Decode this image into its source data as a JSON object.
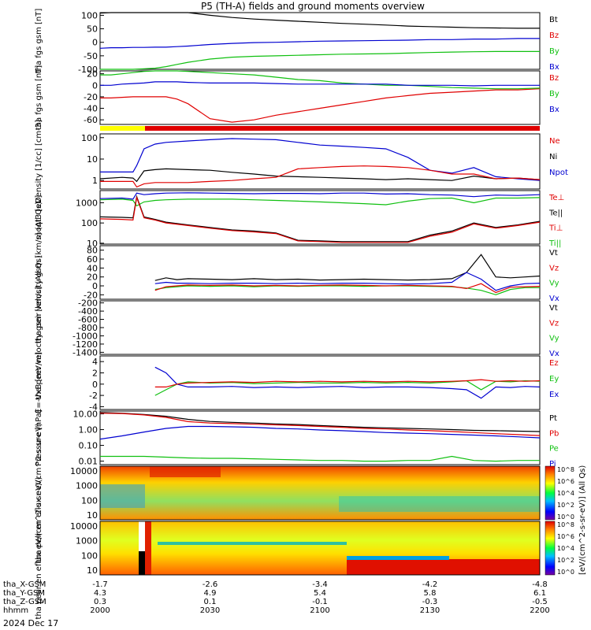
{
  "title": "P5 (TH-A) fields and ground moments overview",
  "colors": {
    "black": "#000000",
    "red": "#e00000",
    "green": "#10c010",
    "blue": "#0000d0",
    "yellow": "#ffff00"
  },
  "colorbar_label": "[eV/(cm^2-s-sr-eV)] (All Qs)",
  "colorbar_ticks": [
    "10^8",
    "10^6",
    "10^4",
    "10^2",
    "10^0"
  ],
  "ephemeris": {
    "rows": [
      {
        "label": "tha_X-GSM",
        "values": [
          "-1.7",
          "-2.6",
          "-3.4",
          "-4.2",
          "-4.8"
        ]
      },
      {
        "label": "tha_Y-GSM",
        "values": [
          "4.3",
          "4.9",
          "5.4",
          "5.8",
          "6.1"
        ]
      },
      {
        "label": "tha_Z-GSM",
        "values": [
          "0.3",
          "0.1",
          "-0.1",
          "-0.3",
          "-0.5"
        ]
      },
      {
        "label": "hhmm",
        "values": [
          "2000",
          "2030",
          "2100",
          "2130",
          "2200"
        ]
      }
    ],
    "date": "2024 Dec 17"
  },
  "chart_data": [
    {
      "type": "line",
      "ylabel": "tha fgs gsm [nT]",
      "yticks": [
        "100",
        "50",
        "0",
        "-50",
        "-100"
      ],
      "ylim": [
        -100,
        110
      ],
      "legend": [
        "Bt",
        "Bz",
        "By",
        "Bx"
      ],
      "legend_colors": [
        "#000000",
        "#e00000",
        "#10c010",
        "#0000d0"
      ],
      "x": [
        0,
        3,
        6,
        9,
        12,
        15,
        18,
        21,
        24,
        30,
        36,
        42,
        48,
        54,
        60,
        66,
        72,
        78,
        84,
        90,
        96,
        102,
        108,
        114,
        120
      ],
      "series": [
        {
          "color": "#000000",
          "values": [
            108,
            110,
            110,
            110,
            110,
            110,
            110,
            110,
            110,
            100,
            92,
            86,
            82,
            78,
            74,
            70,
            67,
            64,
            60,
            58,
            56,
            54,
            53,
            52,
            52
          ]
        },
        {
          "color": "#0000d0",
          "values": [
            -22,
            -20,
            -20,
            -19,
            -19,
            -18,
            -18,
            -16,
            -14,
            -8,
            -4,
            -1,
            0,
            2,
            4,
            5,
            6,
            7,
            8,
            10,
            10,
            12,
            12,
            14,
            14
          ]
        },
        {
          "color": "#10c010",
          "values": [
            -102,
            -102,
            -102,
            -100,
            -98,
            -96,
            -90,
            -82,
            -74,
            -62,
            -55,
            -52,
            -50,
            -48,
            -46,
            -44,
            -43,
            -42,
            -40,
            -38,
            -36,
            -35,
            -34,
            -34,
            -34
          ]
        }
      ]
    },
    {
      "type": "line",
      "ylabel": "tha fgs gsm [nT]",
      "yticks": [
        "20",
        "0",
        "-20",
        "-40",
        "-60"
      ],
      "ylim": [
        -68,
        25
      ],
      "legend": [
        "Bz",
        "By",
        "Bx"
      ],
      "legend_colors": [
        "#e00000",
        "#10c010",
        "#0000d0"
      ],
      "x": [
        0,
        3,
        6,
        9,
        12,
        15,
        18,
        21,
        24,
        30,
        36,
        42,
        48,
        54,
        60,
        66,
        72,
        78,
        84,
        90,
        96,
        102,
        108,
        114,
        120
      ],
      "series": [
        {
          "color": "#e00000",
          "values": [
            -22,
            -22,
            -21,
            -20,
            -20,
            -20,
            -20,
            -24,
            -32,
            -58,
            -64,
            -60,
            -52,
            -46,
            -40,
            -34,
            -28,
            -22,
            -18,
            -14,
            -12,
            -10,
            -8,
            -8,
            -6
          ]
        },
        {
          "color": "#10c010",
          "values": [
            18,
            18,
            20,
            22,
            24,
            26,
            26,
            25,
            24,
            22,
            20,
            18,
            14,
            10,
            8,
            4,
            2,
            0,
            0,
            -2,
            -4,
            -5,
            -6,
            -6,
            -5
          ]
        },
        {
          "color": "#0000d0",
          "values": [
            0,
            0,
            2,
            3,
            4,
            6,
            6,
            6,
            5,
            4,
            4,
            4,
            3,
            2,
            2,
            2,
            2,
            2,
            0,
            0,
            0,
            -1,
            0,
            0,
            0
          ]
        }
      ]
    },
    {
      "type": "line",
      "ylabel": "Density [1/cc] [cm-3]",
      "yticks": [
        "100",
        "10",
        "1"
      ],
      "ylim": [
        0.4,
        150
      ],
      "log": true,
      "legend": [
        "Ne",
        "Ni",
        "Npot"
      ],
      "legend_colors": [
        "#e00000",
        "#000000",
        "#0000d0"
      ],
      "x": [
        0,
        6,
        9,
        10,
        12,
        15,
        18,
        24,
        30,
        36,
        42,
        48,
        54,
        60,
        66,
        72,
        78,
        84,
        90,
        96,
        102,
        108,
        114,
        120
      ],
      "series": [
        {
          "color": "#0000d0",
          "values": [
            2.5,
            2.5,
            2.5,
            5,
            30,
            50,
            60,
            70,
            80,
            90,
            85,
            80,
            60,
            45,
            40,
            35,
            30,
            12,
            3,
            2.2,
            4,
            1.5,
            1.2,
            1
          ]
        },
        {
          "color": "#000000",
          "values": [
            1.2,
            1.4,
            1.3,
            0.9,
            2.8,
            3.2,
            3.5,
            3.2,
            3.0,
            2.4,
            2.0,
            1.6,
            1.5,
            1.4,
            1.3,
            1.2,
            1.1,
            1.2,
            1.1,
            1.0,
            1.6,
            1.2,
            1.3,
            1.1
          ]
        },
        {
          "color": "#e00000",
          "values": [
            0.9,
            0.9,
            0.9,
            0.5,
            0.7,
            0.8,
            0.8,
            0.8,
            0.9,
            1.0,
            1.2,
            1.4,
            3.5,
            4.0,
            4.5,
            4.8,
            4.5,
            4.0,
            3.0,
            2.0,
            2.0,
            1.2,
            1.3,
            1.1
          ]
        }
      ]
    },
    {
      "type": "line",
      "ylabel": "moqt3 [eV]",
      "yticks": [
        "1000",
        "100",
        "10"
      ],
      "ylim": [
        9,
        4000
      ],
      "log": true,
      "legend": [
        "Te⊥",
        "Te||",
        "Ti⊥",
        "Ti||"
      ],
      "legend_colors": [
        "#e00000",
        "#000000",
        "#e00000",
        "#10c010"
      ],
      "x": [
        0,
        6,
        9,
        10,
        12,
        15,
        18,
        24,
        30,
        36,
        42,
        48,
        54,
        60,
        66,
        72,
        78,
        84,
        90,
        96,
        102,
        108,
        114,
        120
      ],
      "series": [
        {
          "color": "#0000d0",
          "values": [
            1600,
            1700,
            1500,
            3000,
            2500,
            2800,
            3000,
            3100,
            3000,
            2900,
            2800,
            2900,
            2900,
            2800,
            3000,
            3000,
            2700,
            2800,
            2500,
            2400,
            2000,
            2400,
            2300,
            2500
          ]
        },
        {
          "color": "#10c010",
          "values": [
            1400,
            1500,
            1300,
            700,
            1100,
            1300,
            1400,
            1500,
            1500,
            1500,
            1400,
            1300,
            1200,
            1100,
            1000,
            900,
            800,
            1200,
            1600,
            1700,
            1000,
            1700,
            1700,
            1800
          ]
        },
        {
          "color": "#000000",
          "values": [
            200,
            190,
            180,
            2000,
            200,
            150,
            110,
            80,
            60,
            45,
            40,
            32,
            14,
            13,
            12,
            12,
            12,
            12,
            25,
            40,
            100,
            60,
            80,
            120
          ]
        },
        {
          "color": "#e00000",
          "values": [
            160,
            150,
            140,
            1800,
            180,
            140,
            100,
            75,
            55,
            42,
            36,
            30,
            13,
            12,
            11,
            11,
            11,
            11,
            22,
            35,
            90,
            55,
            75,
            110
          ]
        }
      ]
    },
    {
      "type": "line",
      "ylabel": "tha peir velocity gsm [km/s] (All Qs)",
      "yticks": [
        "80",
        "60",
        "40",
        "20",
        "0",
        "-20"
      ],
      "ylim": [
        -30,
        90
      ],
      "legend": [
        "Vt",
        "Vz",
        "Vy",
        "Vx"
      ],
      "legend_colors": [
        "#000000",
        "#e00000",
        "#10c010",
        "#0000d0"
      ],
      "x": [
        15,
        18,
        21,
        24,
        30,
        36,
        42,
        48,
        54,
        60,
        66,
        72,
        78,
        84,
        90,
        96,
        100,
        104,
        108,
        112,
        116,
        120
      ],
      "series": [
        {
          "color": "#000000",
          "values": [
            12,
            18,
            14,
            16,
            15,
            14,
            16,
            14,
            15,
            13,
            14,
            15,
            14,
            13,
            14,
            16,
            30,
            70,
            20,
            18,
            20,
            22
          ]
        },
        {
          "color": "#0000d0",
          "values": [
            5,
            8,
            6,
            6,
            5,
            6,
            6,
            5,
            6,
            5,
            6,
            6,
            5,
            4,
            5,
            8,
            30,
            15,
            -10,
            0,
            5,
            6
          ]
        },
        {
          "color": "#10c010",
          "values": [
            -8,
            -4,
            -2,
            0,
            -1,
            0,
            -2,
            0,
            -1,
            0,
            0,
            -1,
            0,
            0,
            -1,
            -2,
            -5,
            -10,
            -20,
            -8,
            -4,
            -4
          ]
        },
        {
          "color": "#e00000",
          "values": [
            -10,
            -2,
            0,
            2,
            1,
            2,
            0,
            1,
            0,
            1,
            2,
            1,
            0,
            1,
            0,
            -1,
            -6,
            5,
            -15,
            -3,
            -2,
            -1
          ]
        }
      ]
    },
    {
      "type": "line",
      "ylabel": "tha peer velocity gsm [km/s] (All Qs)",
      "yticks": [
        "-200",
        "-400",
        "-600",
        "-800",
        "-1000",
        "-1200",
        "-1400"
      ],
      "ylim": [
        -1450,
        -150
      ],
      "legend": [
        "Vt",
        "Vz",
        "Vy",
        "Vx"
      ],
      "legend_colors": [
        "#000000",
        "#e00000",
        "#10c010",
        "#0000d0"
      ],
      "x": [],
      "series": []
    },
    {
      "type": "line",
      "ylabel": "E=-VxB [mV/m]",
      "yticks": [
        "4",
        "2",
        "0",
        "-2",
        "-4"
      ],
      "ylim": [
        -4.5,
        5
      ],
      "legend": [
        "Ez",
        "Ey",
        "Ex"
      ],
      "legend_colors": [
        "#e00000",
        "#10c010",
        "#0000d0"
      ],
      "x": [
        15,
        18,
        21,
        24,
        30,
        36,
        42,
        48,
        54,
        60,
        66,
        72,
        78,
        84,
        90,
        96,
        100,
        104,
        108,
        112,
        116,
        120
      ],
      "series": [
        {
          "color": "#0000d0",
          "values": [
            3,
            2,
            0,
            -0.5,
            -0.5,
            -0.4,
            -0.6,
            -0.5,
            -0.6,
            -0.5,
            -0.4,
            -0.6,
            -0.5,
            -0.5,
            -0.6,
            -0.8,
            -1.0,
            -2.5,
            -0.5,
            -0.6,
            -0.4,
            -0.5
          ]
        },
        {
          "color": "#10c010",
          "values": [
            -2,
            -1,
            0,
            0.4,
            0.2,
            0.3,
            0.1,
            0.2,
            0.3,
            0.2,
            0.2,
            0.3,
            0.2,
            0.3,
            0.2,
            0.4,
            0.6,
            -1,
            0.5,
            0.4,
            0.6,
            0.5
          ]
        },
        {
          "color": "#e00000",
          "values": [
            -0.5,
            -0.5,
            0,
            0.2,
            0.3,
            0.4,
            0.3,
            0.5,
            0.4,
            0.5,
            0.4,
            0.5,
            0.4,
            0.5,
            0.4,
            0.5,
            0.6,
            0.8,
            0.5,
            0.6,
            0.5,
            0.6
          ]
        }
      ]
    },
    {
      "type": "line",
      "ylabel": "Pressure [nPa]",
      "yticks": [
        "10.00",
        "1.00",
        "0.10",
        "0.01"
      ],
      "ylim": [
        0.006,
        15
      ],
      "log": true,
      "legend": [
        "Pt",
        "Pb",
        "Pe",
        "Pi"
      ],
      "legend_colors": [
        "#000000",
        "#e00000",
        "#10c010",
        "#0000d0"
      ],
      "x": [
        0,
        6,
        12,
        18,
        24,
        30,
        36,
        42,
        48,
        54,
        60,
        66,
        72,
        78,
        84,
        90,
        96,
        102,
        108,
        114,
        120
      ],
      "series": [
        {
          "color": "#000000",
          "values": [
            12,
            11,
            9,
            7,
            4.5,
            3.3,
            2.9,
            2.6,
            2.3,
            2.1,
            1.8,
            1.6,
            1.4,
            1.3,
            1.2,
            1.1,
            1.0,
            0.9,
            0.85,
            0.8,
            0.75
          ]
        },
        {
          "color": "#e00000",
          "values": [
            11,
            10.5,
            8.5,
            6,
            3.2,
            2.6,
            2.4,
            2.2,
            2.0,
            1.8,
            1.6,
            1.4,
            1.2,
            1.1,
            0.95,
            0.85,
            0.75,
            0.65,
            0.55,
            0.48,
            0.42
          ]
        },
        {
          "color": "#0000d0",
          "values": [
            0.25,
            0.4,
            0.7,
            1.2,
            1.6,
            1.6,
            1.5,
            1.4,
            1.2,
            1.1,
            0.95,
            0.85,
            0.75,
            0.65,
            0.6,
            0.55,
            0.5,
            0.45,
            0.4,
            0.35,
            0.3
          ]
        },
        {
          "color": "#10c010",
          "values": [
            0.02,
            0.02,
            0.02,
            0.018,
            0.016,
            0.015,
            0.015,
            0.014,
            0.013,
            0.012,
            0.011,
            0.011,
            0.01,
            0.01,
            0.011,
            0.011,
            0.02,
            0.011,
            0.01,
            0.011,
            0.011
          ]
        }
      ]
    },
    {
      "type": "heatmap",
      "ylabel": "tha peir en eflux eV/(cm^2-s-sr-eV)",
      "yticks": [
        "10000",
        "1000",
        "100",
        "10"
      ]
    },
    {
      "type": "heatmap",
      "ylabel": "tha peer en eflux eV/(cm^2-s-sr-eV)",
      "yticks": [
        "10000",
        "1000",
        "100",
        "10"
      ]
    }
  ]
}
